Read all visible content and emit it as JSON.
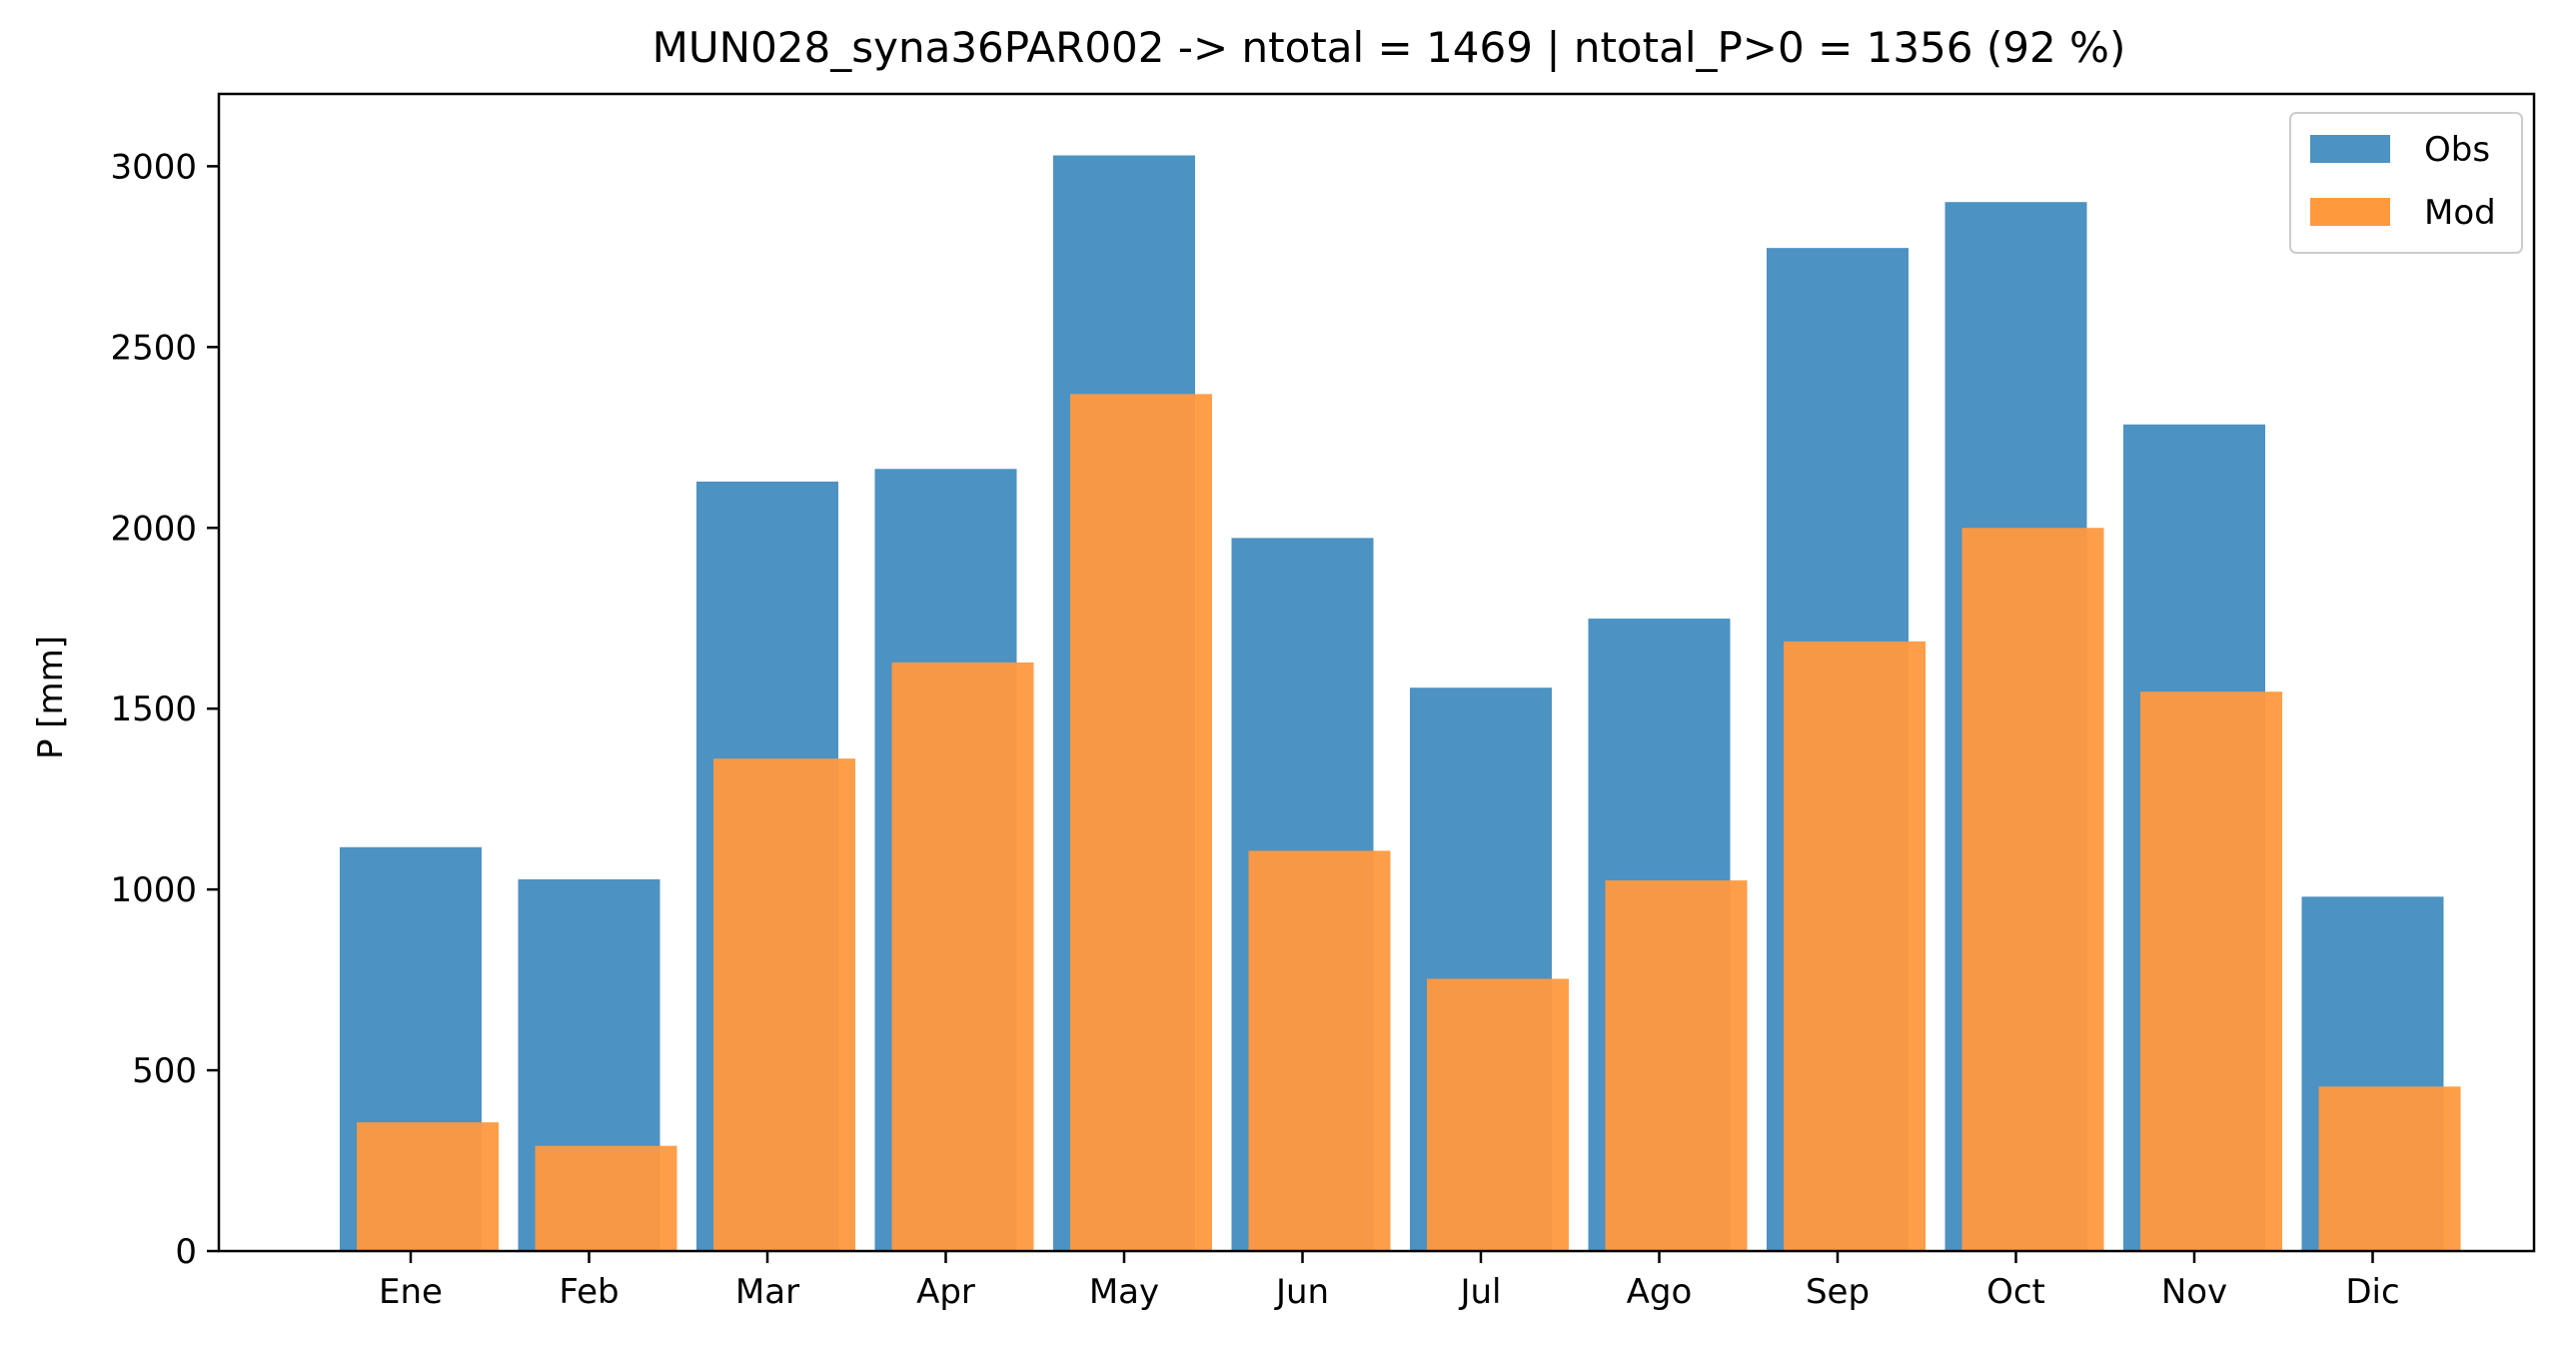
{
  "chart_data": {
    "type": "bar",
    "title": "MUN028_syna36PAR002 -> ntotal = 1469 | ntotal_P>0 = 1356 (92 %)",
    "xlabel": "",
    "ylabel": "P [mm]",
    "ylim": [
      0,
      3200
    ],
    "yticks": [
      0,
      500,
      1000,
      1500,
      2000,
      2500,
      3000
    ],
    "categories": [
      "Ene",
      "Feb",
      "Mar",
      "Apr",
      "May",
      "Jun",
      "Jul",
      "Ago",
      "Sep",
      "Oct",
      "Nov",
      "Dic"
    ],
    "series": [
      {
        "name": "Obs",
        "color": "#4c92c3",
        "values": [
          1117,
          1028,
          2128,
          2163,
          3030,
          1972,
          1558,
          1749,
          2774,
          2901,
          2286,
          980
        ]
      },
      {
        "name": "Mod",
        "color": "#ff993e",
        "values": [
          356,
          291,
          1362,
          1628,
          2370,
          1107,
          753,
          1025,
          1686,
          2000,
          1547,
          455
        ]
      }
    ],
    "legend_position": "top-right",
    "grid": false
  }
}
